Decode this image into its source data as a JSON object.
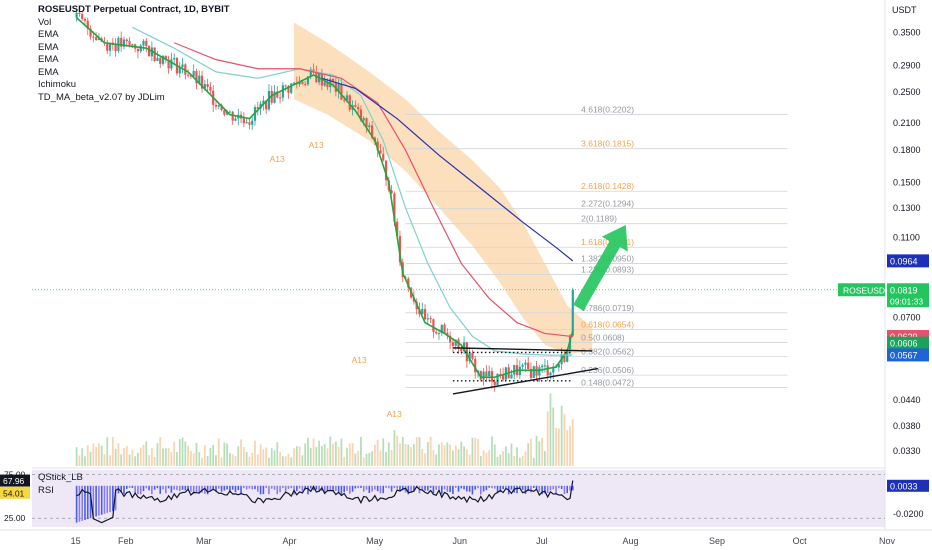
{
  "chart_data": [
    {
      "type": "candlestick",
      "title": "ROSEUSDT Perpetual Contract, 1D, BYBIT",
      "indicators": [
        "Vol",
        "EMA",
        "EMA",
        "EMA",
        "EMA",
        "Ichimoku",
        "TD_MA_beta_v2.07 by JDLim"
      ],
      "y_unit": "USDT",
      "y_scale": "log",
      "ylim": [
        0.0303,
        0.42
      ],
      "y_ticks": [
        "0.3500",
        "0.2900",
        "0.2500",
        "0.2100",
        "0.1800",
        "0.1500",
        "0.1300",
        "0.1100",
        "0.0700",
        "0.0440",
        "0.0380",
        "0.0330"
      ],
      "x_ticks": [
        "15",
        "Feb",
        "Mar",
        "Apr",
        "May",
        "Jun",
        "Jul",
        "Aug",
        "Sep",
        "Oct",
        "Nov"
      ],
      "fib_levels": [
        {
          "label": "4.618(0.2202)",
          "value": 0.2202,
          "color": "#9598a1"
        },
        {
          "label": "3.618(0.1815)",
          "value": 0.1815,
          "color": "#f5a04a"
        },
        {
          "label": "2.618(0.1428)",
          "value": 0.1428,
          "color": "#f5a04a"
        },
        {
          "label": "2.272(0.1294)",
          "value": 0.1294,
          "color": "#9598a1"
        },
        {
          "label": "2(0.1189)",
          "value": 0.1189,
          "color": "#9598a1"
        },
        {
          "label": "1.618(0.1041)",
          "value": 0.1041,
          "color": "#f5a04a"
        },
        {
          "label": "1.382(0.0950)",
          "value": 0.095,
          "color": "#9598a1"
        },
        {
          "label": "1.236(0.0893)",
          "value": 0.0893,
          "color": "#9598a1"
        },
        {
          "label": "0.786(0.0719)",
          "value": 0.0719,
          "color": "#9598a1"
        },
        {
          "label": "0.618(0.0654)",
          "value": 0.0654,
          "color": "#f5a04a"
        },
        {
          "label": "0.5(0.0608)",
          "value": 0.0608,
          "color": "#9598a1"
        },
        {
          "label": "0.382(0.0562)",
          "value": 0.0562,
          "color": "#9598a1"
        },
        {
          "label": "0.236(0.0506)",
          "value": 0.0506,
          "color": "#9598a1"
        },
        {
          "label": "0.148(0.0472)",
          "value": 0.0472,
          "color": "#9598a1"
        }
      ],
      "markers": [
        "A13",
        "A13",
        "A13",
        "A13"
      ],
      "price_badges": [
        {
          "label": "0.0964",
          "value": 0.0964,
          "color": "#1e2fb8"
        },
        {
          "label": "0.0629",
          "value": 0.0629,
          "color": "#e8506a"
        },
        {
          "label": "0.0606",
          "value": 0.0606,
          "color": "#1aa35a"
        },
        {
          "label": "0.0567",
          "value": 0.0567,
          "color": "#1e63d8"
        }
      ],
      "last_price": {
        "symbol": "ROSEUSDT",
        "value": "0.0819",
        "countdown": "09:01:33",
        "color": "#22c55e"
      },
      "series": [
        {
          "name": "EMA fast",
          "color": "#22a63f",
          "points": [
            [
              0,
              0.38
            ],
            [
              10,
              0.33
            ],
            [
              25,
              0.32
            ],
            [
              40,
              0.28
            ],
            [
              55,
              0.22
            ],
            [
              62,
              0.215
            ],
            [
              70,
              0.245
            ],
            [
              85,
              0.275
            ],
            [
              92,
              0.26
            ],
            [
              100,
              0.225
            ],
            [
              107,
              0.19
            ],
            [
              112,
              0.15
            ],
            [
              117,
              0.09
            ],
            [
              125,
              0.068
            ],
            [
              132,
              0.064
            ],
            [
              138,
              0.06
            ],
            [
              145,
              0.05
            ],
            [
              150,
              0.05
            ],
            [
              158,
              0.052
            ],
            [
              166,
              0.052
            ],
            [
              172,
              0.053
            ],
            [
              176,
              0.058
            ],
            [
              178,
              0.065
            ]
          ]
        },
        {
          "name": "EMA slow",
          "color": "#7fd3cc",
          "points": [
            [
              20,
              0.36
            ],
            [
              35,
              0.32
            ],
            [
              50,
              0.28
            ],
            [
              65,
              0.27
            ],
            [
              80,
              0.285
            ],
            [
              92,
              0.275
            ],
            [
              102,
              0.245
            ],
            [
              110,
              0.19
            ],
            [
              118,
              0.13
            ],
            [
              126,
              0.095
            ],
            [
              134,
              0.074
            ],
            [
              142,
              0.063
            ],
            [
              150,
              0.058
            ],
            [
              160,
              0.057
            ],
            [
              170,
              0.0566
            ],
            [
              178,
              0.0567
            ]
          ]
        },
        {
          "name": "EMA 100",
          "color": "#e8506a",
          "points": [
            [
              35,
              0.33
            ],
            [
              50,
              0.3
            ],
            [
              65,
              0.285
            ],
            [
              80,
              0.285
            ],
            [
              95,
              0.27
            ],
            [
              108,
              0.235
            ],
            [
              118,
              0.18
            ],
            [
              128,
              0.13
            ],
            [
              138,
              0.095
            ],
            [
              148,
              0.078
            ],
            [
              158,
              0.068
            ],
            [
              168,
              0.064
            ],
            [
              178,
              0.0629
            ]
          ]
        },
        {
          "name": "EMA 200",
          "color": "#2631b0",
          "points": [
            [
              88,
              0.27
            ],
            [
              100,
              0.255
            ],
            [
              115,
              0.215
            ],
            [
              130,
              0.175
            ],
            [
              145,
              0.145
            ],
            [
              160,
              0.12
            ],
            [
              172,
              0.104
            ],
            [
              178,
              0.0964
            ]
          ]
        }
      ],
      "cloud": {
        "color": "#fbd6a8",
        "upper": [
          [
            78,
            0.37
          ],
          [
            90,
            0.33
          ],
          [
            105,
            0.28
          ],
          [
            118,
            0.24
          ],
          [
            130,
            0.2
          ],
          [
            142,
            0.17
          ],
          [
            152,
            0.145
          ],
          [
            160,
            0.12
          ],
          [
            168,
            0.095
          ],
          [
            176,
            0.075
          ],
          [
            185,
            0.066
          ]
        ],
        "lower": [
          [
            78,
            0.24
          ],
          [
            90,
            0.22
          ],
          [
            105,
            0.19
          ],
          [
            118,
            0.16
          ],
          [
            130,
            0.13
          ],
          [
            142,
            0.105
          ],
          [
            152,
            0.085
          ],
          [
            160,
            0.07
          ],
          [
            168,
            0.06
          ],
          [
            176,
            0.057
          ],
          [
            185,
            0.058
          ]
        ]
      },
      "trendlines": [
        {
          "from": [
            135,
            0.059
          ],
          "to": [
            185,
            0.058
          ],
          "style": "solid"
        },
        {
          "from": [
            135,
            0.0455
          ],
          "to": [
            187,
            0.0525
          ],
          "style": "solid"
        },
        {
          "from": [
            135,
            0.0575
          ],
          "to": [
            178,
            0.0575
          ],
          "style": "dotted"
        },
        {
          "from": [
            135,
            0.049
          ],
          "to": [
            178,
            0.049
          ],
          "style": "dotted"
        }
      ],
      "arrow": {
        "from": [
          180,
          0.074
        ],
        "to": [
          197,
          0.118
        ],
        "color": "#22c55e"
      }
    },
    {
      "type": "line",
      "indicators": [
        "QStick_LB",
        "RSI"
      ],
      "values_shown": [
        "67.96",
        "54.01"
      ],
      "y_ticks": [
        "75.00",
        "25.00"
      ],
      "right_ticks": [
        "0.0033",
        "-0.0200"
      ],
      "qstick_value": "0.0033",
      "ylim": [
        15,
        80
      ]
    }
  ]
}
